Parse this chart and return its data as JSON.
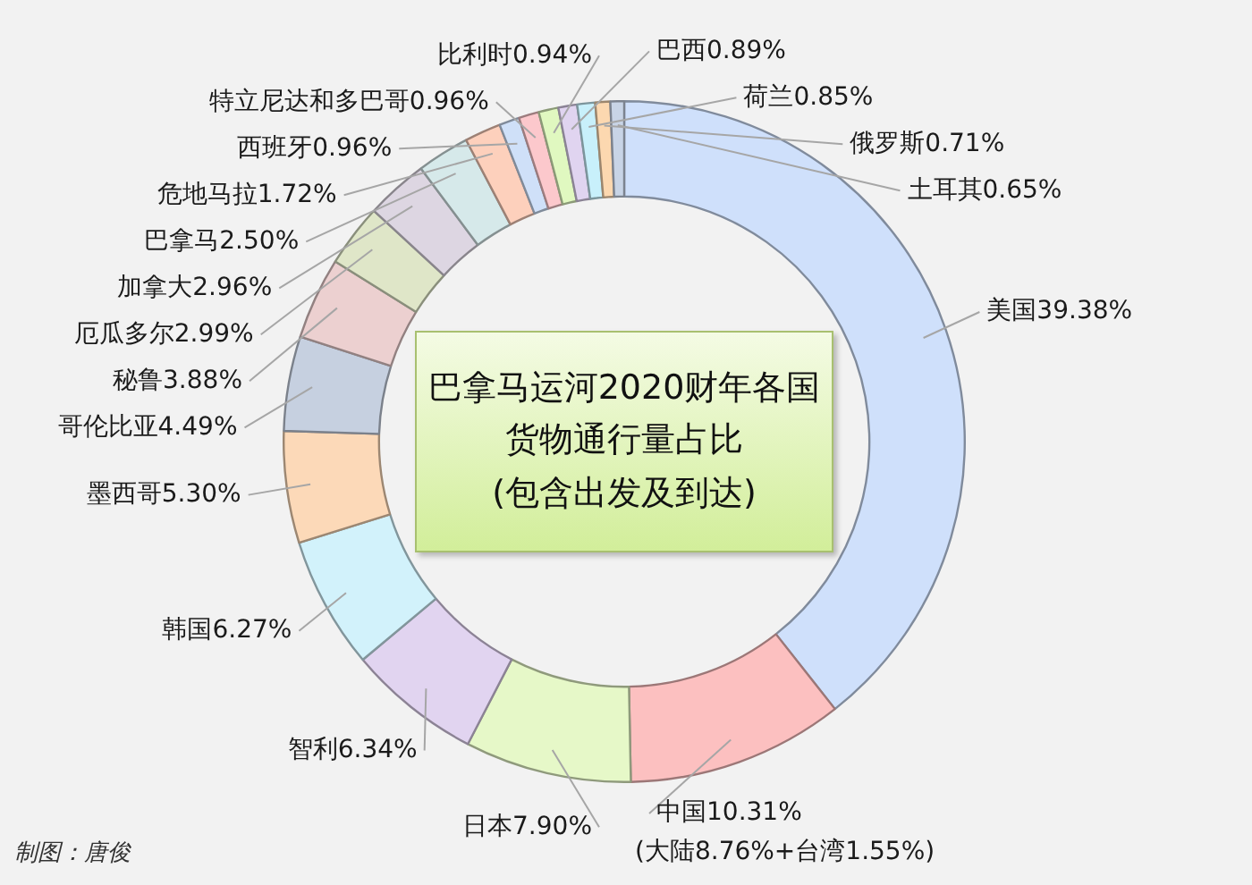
{
  "chart_data": {
    "type": "donut",
    "title": "巴拿马运河2020财年各国货物通行量占比",
    "subtitle": "(包含出发及到达)",
    "categories": [
      "美国",
      "中国",
      "日本",
      "智利",
      "韩国",
      "墨西哥",
      "哥伦比亚",
      "秘鲁",
      "厄瓜多尔",
      "加拿大",
      "巴拿马",
      "危地马拉",
      "西班牙",
      "特立尼达和多巴哥",
      "比利时",
      "巴西",
      "荷兰",
      "俄罗斯",
      "土耳其"
    ],
    "values": [
      39.38,
      10.31,
      7.9,
      6.34,
      6.27,
      5.3,
      4.49,
      3.88,
      2.99,
      2.96,
      2.5,
      1.72,
      0.96,
      0.96,
      0.94,
      0.89,
      0.85,
      0.71,
      0.65
    ],
    "value_labels": [
      "39.38%",
      "10.31%",
      "7.90%",
      "6.34%",
      "6.27%",
      "5.30%",
      "4.49%",
      "3.88%",
      "2.99%",
      "2.96%",
      "2.50%",
      "1.72%",
      "0.96%",
      "0.96%",
      "0.94%",
      "0.89%",
      "0.85%",
      "0.71%",
      "0.65%"
    ],
    "colors": [
      "#cfe0fb",
      "#fcc0c0",
      "#e6f8c8",
      "#e1d4f0",
      "#d2f2fb",
      "#fcd9b8",
      "#c6d0e0",
      "#ecd0d0",
      "#dfe6c8",
      "#ddd6e2",
      "#d6e9ea",
      "#fdd0bc",
      "#cfe0f8",
      "#fcc8cc",
      "#e0f8c0",
      "#e0d4f0",
      "#c8f0fb",
      "#fcd8b0",
      "#c8d4e6"
    ],
    "legend": false,
    "annotations": [
      {
        "text": "(大陆8.76%+台湾1.55%)",
        "x": "中国"
      },
      "制图：唐俊"
    ]
  }
}
